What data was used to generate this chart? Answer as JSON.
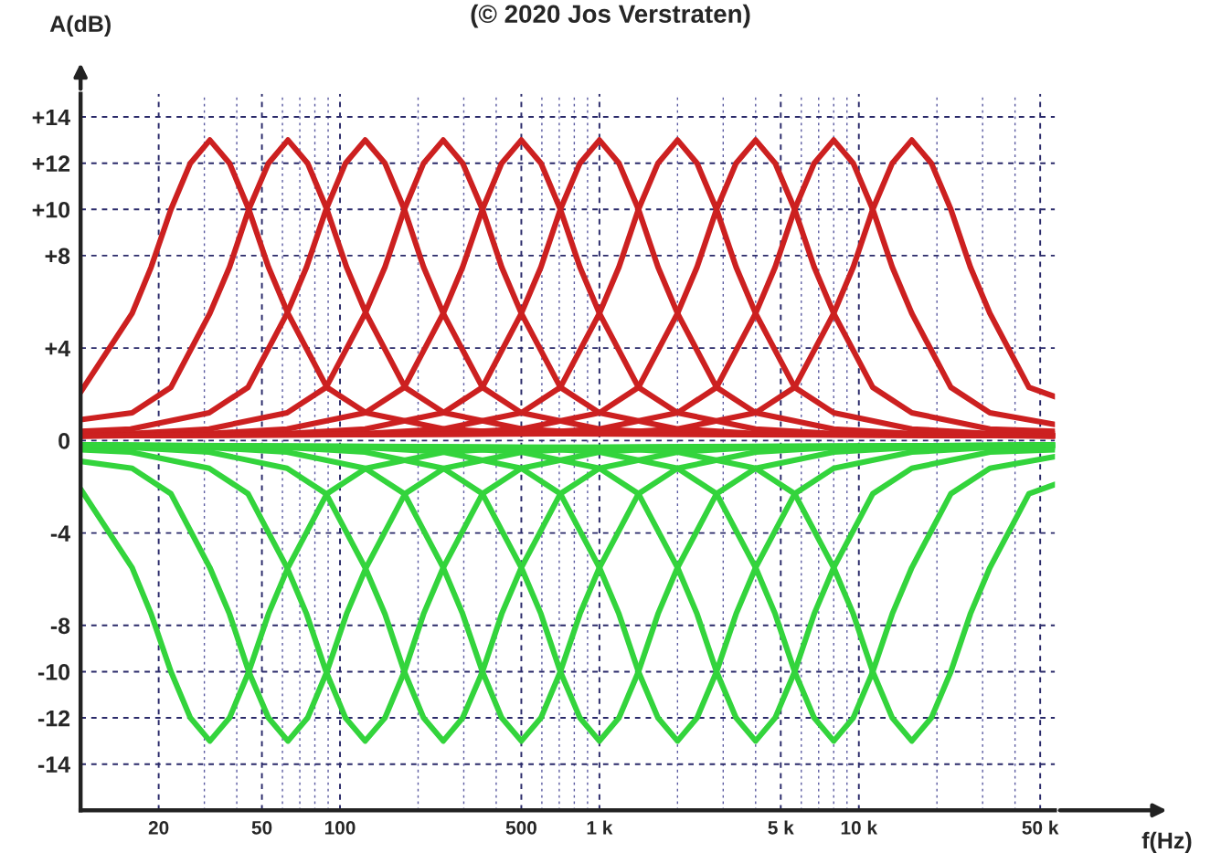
{
  "chart_data": {
    "type": "line",
    "title": "(© 2020 Jos Verstraten)",
    "xlabel": "f(Hz)",
    "ylabel": "A(dB)",
    "log": "x",
    "grid": true,
    "line_style": "solid",
    "marker": "none",
    "xlim": [
      10,
      57000
    ],
    "ylim": [
      -16,
      15
    ],
    "xticks": [
      20,
      {
        "value": 30,
        "label": null
      },
      {
        "value": 40,
        "label": null
      },
      50,
      {
        "value": 60,
        "label": null
      },
      {
        "value": 70,
        "label": null
      },
      {
        "value": 80,
        "label": null
      },
      {
        "value": 90,
        "label": null
      },
      100,
      {
        "value": 200,
        "label": null
      },
      {
        "value": 300,
        "label": null
      },
      {
        "value": 400,
        "label": null
      },
      500,
      {
        "value": 600,
        "label": null
      },
      {
        "value": 700,
        "label": null
      },
      {
        "value": 800,
        "label": null
      },
      {
        "value": 900,
        "label": null
      },
      {
        "value": 1000,
        "label": "1 k"
      },
      {
        "value": 2000,
        "label": null
      },
      {
        "value": 3000,
        "label": null
      },
      {
        "value": 4000,
        "label": null
      },
      {
        "value": 5000,
        "label": "5 k"
      },
      {
        "value": 6000,
        "label": null
      },
      {
        "value": 7000,
        "label": null
      },
      {
        "value": 8000,
        "label": null
      },
      {
        "value": 9000,
        "label": null
      },
      {
        "value": 10000,
        "label": "10 k"
      },
      {
        "value": 20000,
        "label": null
      },
      {
        "value": 30000,
        "label": null
      },
      {
        "value": 40000,
        "label": null
      },
      {
        "value": 50000,
        "label": "50 k"
      }
    ],
    "yticks": [
      {
        "value": 14,
        "label": "+14"
      },
      {
        "value": 12,
        "label": "+12"
      },
      {
        "value": 10,
        "label": "+10"
      },
      {
        "value": 8,
        "label": "+8"
      },
      {
        "value": 4,
        "label": "+4"
      },
      0,
      -4,
      -8,
      -10,
      -12,
      -14
    ],
    "series": [
      {
        "color": "#cc2020",
        "x": [
          10,
          15.8,
          18.7,
          22.3,
          26.5,
          31.5,
          37.5,
          44.5,
          53,
          63,
          89,
          126,
          252,
          504,
          57000
        ],
        "values": [
          2.1,
          5.5,
          7.5,
          10,
          12,
          13,
          12,
          10,
          7.5,
          5.5,
          2.3,
          1.2,
          0.5,
          0.3,
          0.2
        ]
      },
      {
        "color": "#cc2020",
        "x": [
          10,
          15.8,
          22.3,
          31.5,
          37.5,
          44.5,
          53,
          63,
          75,
          89,
          106,
          126,
          178,
          252,
          504,
          1008,
          57000
        ],
        "values": [
          0.9,
          1.2,
          2.3,
          5.5,
          7.5,
          10,
          12,
          13,
          12,
          10,
          7.5,
          5.5,
          2.3,
          1.2,
          0.5,
          0.3,
          0.2
        ]
      },
      {
        "color": "#cc2020",
        "x": [
          10,
          15.6,
          31.3,
          44.2,
          62.5,
          74.3,
          88.4,
          105,
          125,
          149,
          177,
          210,
          250,
          354,
          500,
          1000,
          2000,
          57000
        ],
        "values": [
          0.4,
          0.5,
          1.2,
          2.3,
          5.5,
          7.5,
          10,
          12,
          13,
          12,
          10,
          7.5,
          5.5,
          2.3,
          1.2,
          0.5,
          0.3,
          0.2
        ]
      },
      {
        "color": "#cc2020",
        "x": [
          10,
          15.6,
          31.3,
          62.5,
          88.4,
          125,
          149,
          177,
          210,
          250,
          297,
          354,
          420,
          500,
          707,
          1000,
          2000,
          4000,
          57000
        ],
        "values": [
          0.2,
          0.3,
          0.5,
          1.2,
          2.3,
          5.5,
          7.5,
          10,
          12,
          13,
          12,
          10,
          7.5,
          5.5,
          2.3,
          1.2,
          0.5,
          0.3,
          0.2
        ]
      },
      {
        "color": "#cc2020",
        "x": [
          10,
          31.3,
          62.5,
          125,
          177,
          250,
          297,
          354,
          420,
          500,
          595,
          707,
          841,
          1000,
          1414,
          2000,
          4000,
          8000,
          57000
        ],
        "values": [
          0.2,
          0.3,
          0.5,
          1.2,
          2.3,
          5.5,
          7.5,
          10,
          12,
          13,
          12,
          10,
          7.5,
          5.5,
          2.3,
          1.2,
          0.5,
          0.3,
          0.2
        ]
      },
      {
        "color": "#cc2020",
        "x": [
          10,
          62.5,
          125,
          250,
          354,
          500,
          595,
          707,
          841,
          1000,
          1189,
          1414,
          1682,
          2000,
          2828,
          4000,
          8000,
          16000,
          57000
        ],
        "values": [
          0.2,
          0.3,
          0.5,
          1.2,
          2.3,
          5.5,
          7.5,
          10,
          12,
          13,
          12,
          10,
          7.5,
          5.5,
          2.3,
          1.2,
          0.5,
          0.3,
          0.2
        ]
      },
      {
        "color": "#cc2020",
        "x": [
          10,
          125,
          250,
          500,
          707,
          1000,
          1189,
          1414,
          1682,
          2000,
          2378,
          2828,
          3364,
          4000,
          5657,
          8000,
          16000,
          32000,
          57000
        ],
        "values": [
          0.2,
          0.3,
          0.5,
          1.2,
          2.3,
          5.5,
          7.5,
          10,
          12,
          13,
          12,
          10,
          7.5,
          5.5,
          2.3,
          1.2,
          0.5,
          0.3,
          0.3
        ]
      },
      {
        "color": "#cc2020",
        "x": [
          10,
          250,
          500,
          1000,
          1414,
          2000,
          2378,
          2828,
          3364,
          4000,
          4757,
          5657,
          6727,
          8000,
          11314,
          16000,
          32000,
          57000
        ],
        "values": [
          0.2,
          0.3,
          0.5,
          1.2,
          2.3,
          5.5,
          7.5,
          10,
          12,
          13,
          12,
          10,
          7.5,
          5.5,
          2.3,
          1.2,
          0.5,
          0.4
        ]
      },
      {
        "color": "#cc2020",
        "x": [
          10,
          500,
          1000,
          2000,
          2828,
          4000,
          4757,
          5657,
          6727,
          8000,
          9514,
          11314,
          13454,
          16000,
          22627,
          32000,
          57000
        ],
        "values": [
          0.2,
          0.3,
          0.5,
          1.2,
          2.3,
          5.5,
          7.5,
          10,
          12,
          13,
          12,
          10,
          7.5,
          5.5,
          2.3,
          1.2,
          0.7
        ]
      },
      {
        "color": "#cc2020",
        "x": [
          10,
          1000,
          2000,
          4000,
          5657,
          8000,
          9514,
          11314,
          13454,
          16000,
          19027,
          22627,
          26909,
          32000,
          45255,
          57000
        ],
        "values": [
          0.2,
          0.3,
          0.5,
          1.2,
          2.3,
          5.5,
          7.5,
          10,
          12,
          13,
          12,
          10,
          7.5,
          5.5,
          2.3,
          1.9
        ]
      },
      {
        "color": "#33d43c",
        "x": [
          10,
          15.8,
          18.7,
          22.3,
          26.5,
          31.5,
          37.5,
          44.5,
          53,
          63,
          89,
          126,
          252,
          504,
          57000
        ],
        "values": [
          -2.1,
          -5.5,
          -7.5,
          -10,
          -12,
          -13,
          -12,
          -10,
          -7.5,
          -5.5,
          -2.3,
          -1.2,
          -0.5,
          -0.3,
          -0.2
        ]
      },
      {
        "color": "#33d43c",
        "x": [
          10,
          15.8,
          22.3,
          31.5,
          37.5,
          44.5,
          53,
          63,
          75,
          89,
          106,
          126,
          178,
          252,
          504,
          1008,
          57000
        ],
        "values": [
          -0.9,
          -1.2,
          -2.3,
          -5.5,
          -7.5,
          -10,
          -12,
          -13,
          -12,
          -10,
          -7.5,
          -5.5,
          -2.3,
          -1.2,
          -0.5,
          -0.3,
          -0.2
        ]
      },
      {
        "color": "#33d43c",
        "x": [
          10,
          15.6,
          31.3,
          44.2,
          62.5,
          74.3,
          88.4,
          105,
          125,
          149,
          177,
          210,
          250,
          354,
          500,
          1000,
          2000,
          57000
        ],
        "values": [
          -0.4,
          -0.5,
          -1.2,
          -2.3,
          -5.5,
          -7.5,
          -10,
          -12,
          -13,
          -12,
          -10,
          -7.5,
          -5.5,
          -2.3,
          -1.2,
          -0.5,
          -0.3,
          -0.2
        ]
      },
      {
        "color": "#33d43c",
        "x": [
          10,
          15.6,
          31.3,
          62.5,
          88.4,
          125,
          149,
          177,
          210,
          250,
          297,
          354,
          420,
          500,
          707,
          1000,
          2000,
          4000,
          57000
        ],
        "values": [
          -0.2,
          -0.3,
          -0.5,
          -1.2,
          -2.3,
          -5.5,
          -7.5,
          -10,
          -12,
          -13,
          -12,
          -10,
          -7.5,
          -5.5,
          -2.3,
          -1.2,
          -0.5,
          -0.3,
          -0.2
        ]
      },
      {
        "color": "#33d43c",
        "x": [
          10,
          31.3,
          62.5,
          125,
          177,
          250,
          297,
          354,
          420,
          500,
          595,
          707,
          841,
          1000,
          1414,
          2000,
          4000,
          8000,
          57000
        ],
        "values": [
          -0.2,
          -0.3,
          -0.5,
          -1.2,
          -2.3,
          -5.5,
          -7.5,
          -10,
          -12,
          -13,
          -12,
          -10,
          -7.5,
          -5.5,
          -2.3,
          -1.2,
          -0.5,
          -0.3,
          -0.2
        ]
      },
      {
        "color": "#33d43c",
        "x": [
          10,
          62.5,
          125,
          250,
          354,
          500,
          595,
          707,
          841,
          1000,
          1189,
          1414,
          1682,
          2000,
          2828,
          4000,
          8000,
          16000,
          57000
        ],
        "values": [
          -0.2,
          -0.3,
          -0.5,
          -1.2,
          -2.3,
          -5.5,
          -7.5,
          -10,
          -12,
          -13,
          -12,
          -10,
          -7.5,
          -5.5,
          -2.3,
          -1.2,
          -0.5,
          -0.3,
          -0.2
        ]
      },
      {
        "color": "#33d43c",
        "x": [
          10,
          125,
          250,
          500,
          707,
          1000,
          1189,
          1414,
          1682,
          2000,
          2378,
          2828,
          3364,
          4000,
          5657,
          8000,
          16000,
          32000,
          57000
        ],
        "values": [
          -0.2,
          -0.3,
          -0.5,
          -1.2,
          -2.3,
          -5.5,
          -7.5,
          -10,
          -12,
          -13,
          -12,
          -10,
          -7.5,
          -5.5,
          -2.3,
          -1.2,
          -0.5,
          -0.3,
          -0.3
        ]
      },
      {
        "color": "#33d43c",
        "x": [
          10,
          250,
          500,
          1000,
          1414,
          2000,
          2378,
          2828,
          3364,
          4000,
          4757,
          5657,
          6727,
          8000,
          11314,
          16000,
          32000,
          57000
        ],
        "values": [
          -0.2,
          -0.3,
          -0.5,
          -1.2,
          -2.3,
          -5.5,
          -7.5,
          -10,
          -12,
          -13,
          -12,
          -10,
          -7.5,
          -5.5,
          -2.3,
          -1.2,
          -0.5,
          -0.4
        ]
      },
      {
        "color": "#33d43c",
        "x": [
          10,
          500,
          1000,
          2000,
          2828,
          4000,
          4757,
          5657,
          6727,
          8000,
          9514,
          11314,
          13454,
          16000,
          22627,
          32000,
          57000
        ],
        "values": [
          -0.2,
          -0.3,
          -0.5,
          -1.2,
          -2.3,
          -5.5,
          -7.5,
          -10,
          -12,
          -13,
          -12,
          -10,
          -7.5,
          -5.5,
          -2.3,
          -1.2,
          -0.7
        ]
      },
      {
        "color": "#33d43c",
        "x": [
          10,
          1000,
          2000,
          4000,
          5657,
          8000,
          9514,
          11314,
          13454,
          16000,
          19027,
          22627,
          26909,
          32000,
          45255,
          57000
        ],
        "values": [
          -0.2,
          -0.3,
          -0.5,
          -1.2,
          -2.3,
          -5.5,
          -7.5,
          -10,
          -12,
          -13,
          -12,
          -10,
          -7.5,
          -5.5,
          -2.3,
          -1.9
        ]
      }
    ]
  }
}
